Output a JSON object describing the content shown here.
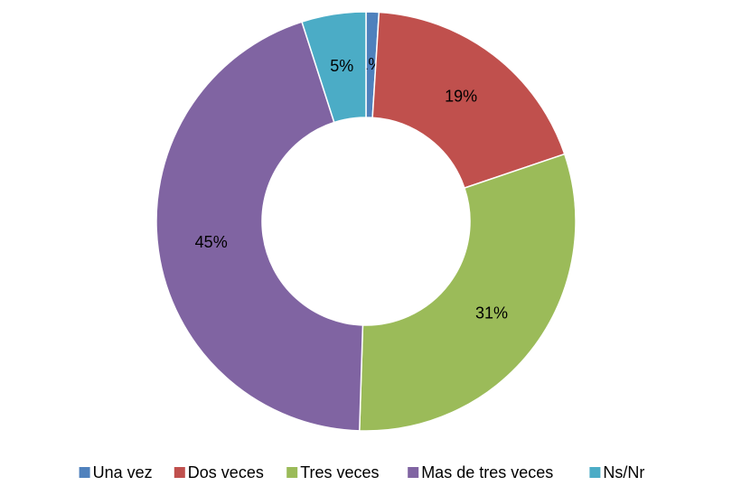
{
  "chart_data": {
    "type": "donut",
    "categories": [
      "Una vez",
      "Dos veces",
      "Tres veces",
      "Mas de tres veces",
      "Ns/Nr"
    ],
    "values": [
      1,
      19,
      31,
      45,
      5
    ],
    "value_labels": [
      "1%",
      "19%",
      "31%",
      "45%",
      "5%"
    ],
    "colors": [
      "#4f81bd",
      "#c0504d",
      "#9bbb59",
      "#8064a2",
      "#4bacc6"
    ],
    "legend": "bottom"
  }
}
